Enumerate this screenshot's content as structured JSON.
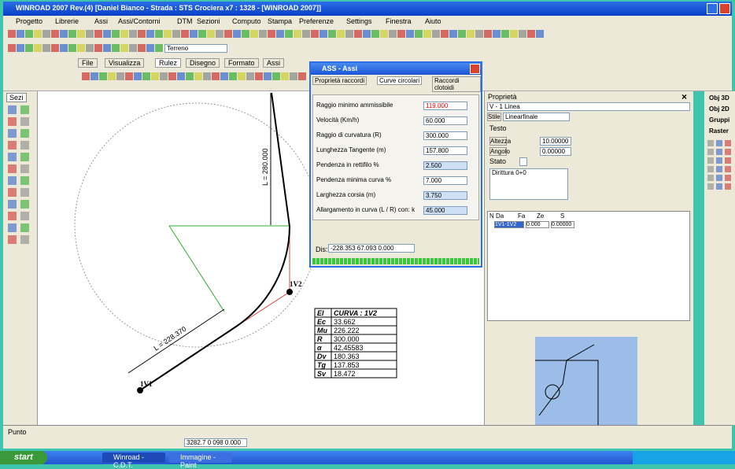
{
  "window": {
    "title": "WINROAD 2007 Rev.(4) [Daniel Bianco - Strada : STS Crociera x7 : 1328 - [WINROAD 2007]]"
  },
  "menu": [
    "Progetto",
    "Librerie",
    "Assi",
    "Assi/Contorni",
    "DTM",
    "Sezioni",
    "Computo",
    "Stampa",
    "Preferenze",
    "Settings",
    "Finestra",
    "Aiuto"
  ],
  "toolbar_tabs": [
    "File",
    "Visualizza",
    "Rulez",
    "Disegno",
    "Formato",
    "Assi"
  ],
  "toolbar_combo": "Terreno",
  "left_panel": {
    "title": "Sezi"
  },
  "dialog": {
    "title": "ASS - Assi",
    "tabs": [
      "Proprietà raccordi",
      "Curve circolari",
      "Raccordi clotoidi"
    ],
    "fields": [
      {
        "label": "Raggio minimo ammissibile",
        "value": "119.000"
      },
      {
        "label": "Velocità (Km/h)",
        "value": "60.000"
      },
      {
        "label": "Raggio di curvatura (R)",
        "value": "300.000"
      },
      {
        "label": "Lunghezza Tangente (m)",
        "value": "157.800"
      },
      {
        "label": "Pendenza in rettifilo %",
        "value": "2.500"
      },
      {
        "label": "Pendenza minima curva %",
        "value": "7.000"
      },
      {
        "label": "Larghezza corsia (m)",
        "value": "3.750"
      },
      {
        "label": "Allargamento in curva (L / R) con: k",
        "value": "45.000"
      }
    ],
    "status_label": "Dis:",
    "status_value": "-228.353 67.093 0.000"
  },
  "drawing": {
    "vertex_labels": [
      "1V2",
      "1V1"
    ],
    "dimensions": [
      "L = 228.370",
      "L = 280.000"
    ],
    "table": {
      "header": [
        "El",
        "CURVA : 1V2"
      ],
      "rows": [
        [
          "Ec",
          "33.662"
        ],
        [
          "Mu",
          "226.222"
        ],
        [
          "R",
          "300.000"
        ],
        [
          "α",
          "42.45583"
        ],
        [
          "Dv",
          "180.363"
        ],
        [
          "Tg",
          "137.853"
        ],
        [
          "Sv",
          "18.472"
        ]
      ]
    }
  },
  "properties": {
    "title": "Proprietà",
    "object": "V - 1 Linea",
    "style_label": "Stile",
    "style_value": "Linearfinale",
    "group": "Testo",
    "fields": [
      {
        "label": "Altezza",
        "value": "10.00000"
      },
      {
        "label": "Angolo",
        "value": "0.00000"
      }
    ],
    "check_label": "Stato",
    "text_value": "Dirittura 0+0",
    "grid_header": [
      "N",
      "Da",
      "Fa",
      "Ze",
      "S"
    ],
    "grid_row": [
      "1V1-1V2",
      "0.000",
      "0.00000"
    ]
  },
  "side_panel": [
    "Obj 3D",
    "Obj 2D",
    "Gruppi",
    "Raster"
  ],
  "command_line": "Punto",
  "coordinates": "3282.7 0 098 0.000",
  "taskbar": {
    "start": "start",
    "items": [
      "Winroad - C.D.T.",
      "Immagine - Paint"
    ]
  }
}
